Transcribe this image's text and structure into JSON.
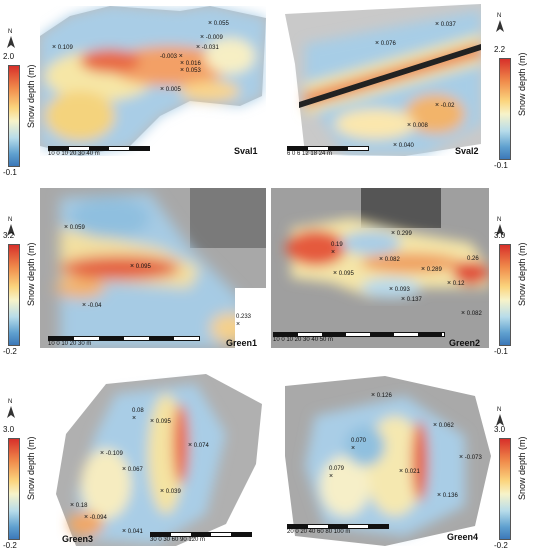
{
  "legend_title": "Snow depth (m)",
  "panels": {
    "sval1": {
      "name": "Sval1",
      "cb_max": "2.0",
      "cb_min": "-0.1",
      "scale_ticks": "10    0    10    20    30    40 m",
      "points": [
        "0.109",
        "0.055",
        "-0.009",
        "-0.031",
        "-0.003",
        "0.016",
        "0.053",
        "0.005"
      ]
    },
    "sval2": {
      "name": "Sval2",
      "cb_max": "2.2",
      "cb_min": "-0.1",
      "scale_ticks": "6   0    6    12    18    24 m",
      "points": [
        "0.037",
        "0.076",
        "-0.02",
        "0.008",
        "0.040"
      ]
    },
    "green1": {
      "name": "Green1",
      "cb_max": "3.2",
      "cb_min": "-0.2",
      "scale_ticks": "10          0          10          20          30 m",
      "points": [
        "0.059",
        "0.095",
        "-0.04",
        "0.233"
      ]
    },
    "green2": {
      "name": "Green2",
      "cb_max": "3.0",
      "cb_min": "-0.1",
      "scale_ticks": "10        0        10        20        30        40        50 m",
      "points": [
        "0.299",
        "0.19",
        "0.082",
        "0.095",
        "0.289",
        "0.093",
        "0.137",
        "0.082",
        "0.12",
        "0.26"
      ]
    },
    "green3": {
      "name": "Green3",
      "cb_max": "3.0",
      "cb_min": "-0.2",
      "scale_ticks": "30    0    30    60    90    120 m",
      "points": [
        "0.08",
        "0.095",
        "-0.109",
        "0.074",
        "0.067",
        "0.039",
        "0.18",
        "-0.094",
        "0.041"
      ]
    },
    "green4": {
      "name": "Green4",
      "cb_max": "3.0",
      "cb_min": "-0.2",
      "scale_ticks": "20    0    20    40    60    80    100 m",
      "points": [
        "0.126",
        "0.062",
        "0.070",
        "-0.073",
        "0.079",
        "0.021",
        "0.136"
      ]
    }
  }
}
